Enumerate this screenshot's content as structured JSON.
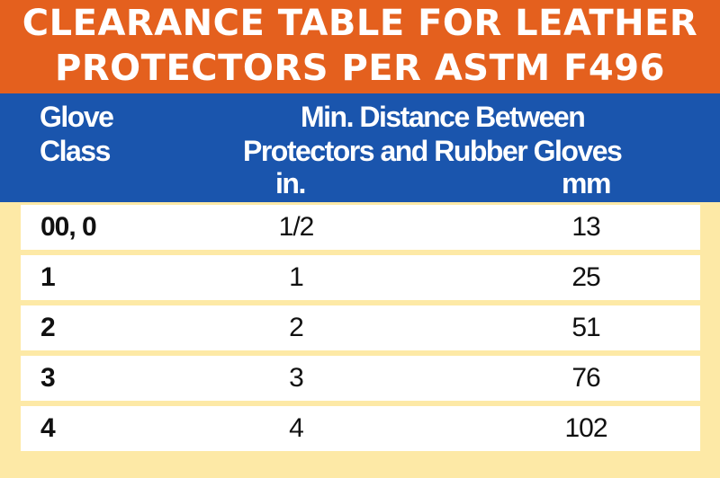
{
  "title": {
    "line1": "CLEARANCE TABLE FOR LEATHER",
    "line2": "PROTECTORS PER ASTM F496"
  },
  "header": {
    "glove_class_line1": "Glove",
    "glove_class_line2": "Class",
    "distance_line1": "Min. Distance Between",
    "distance_line2": "Protectors and Rubber Gloves",
    "unit_in": "in.",
    "unit_mm": "mm"
  },
  "rows": [
    {
      "class": "00, 0",
      "in": "1/2",
      "mm": "13"
    },
    {
      "class": "1",
      "in": "1",
      "mm": "25"
    },
    {
      "class": "2",
      "in": "2",
      "mm": "51"
    },
    {
      "class": "3",
      "in": "3",
      "mm": "76"
    },
    {
      "class": "4",
      "in": "4",
      "mm": "102"
    }
  ],
  "colors": {
    "title_bg": "#e4601e",
    "header_bg": "#1a55ad",
    "page_bg": "#fde9a6",
    "row_bg": "#ffffff"
  }
}
